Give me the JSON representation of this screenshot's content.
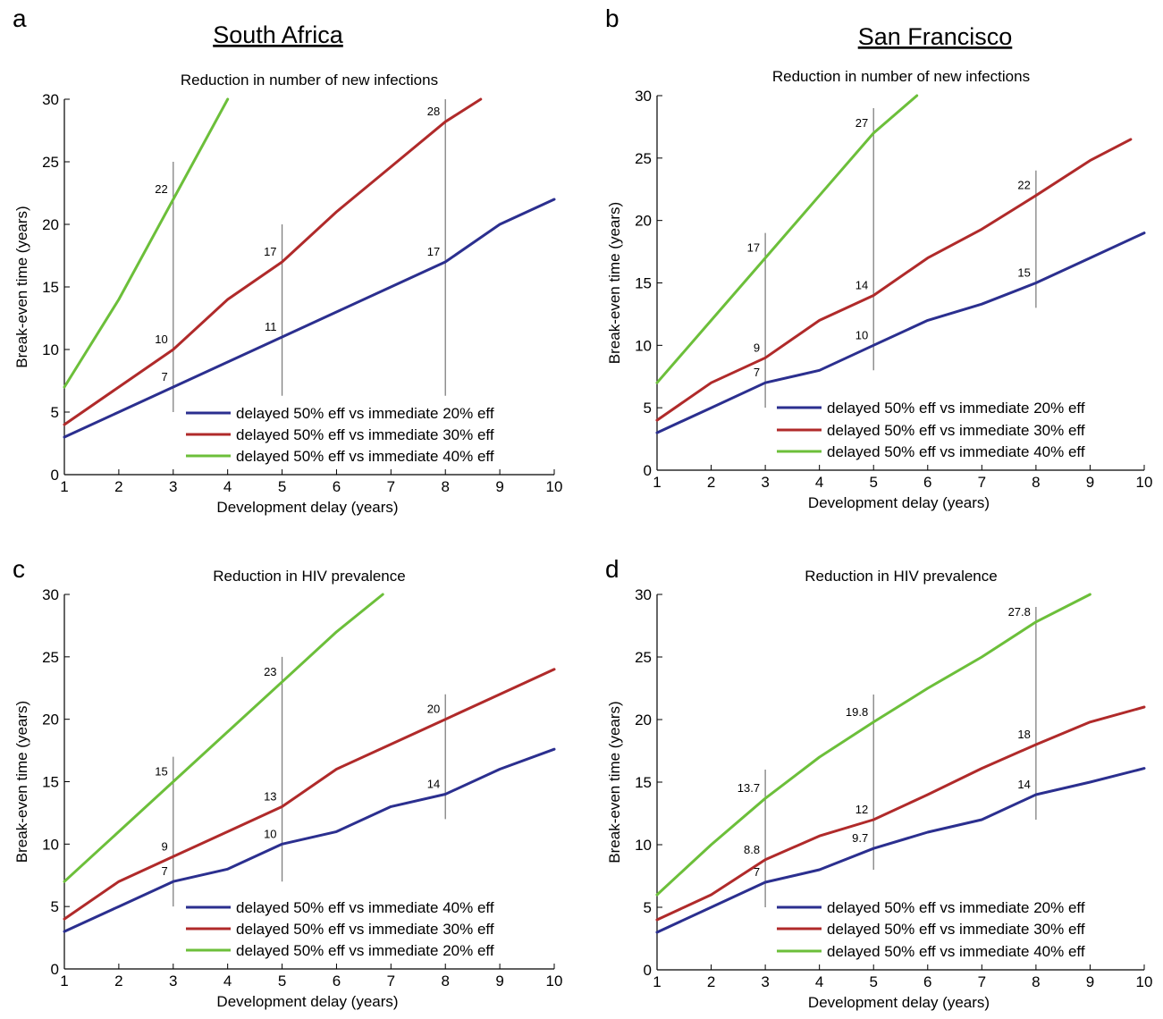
{
  "figure": {
    "region_titles": [
      {
        "text": "South Africa",
        "panel": 0
      },
      {
        "text": "San Francisco",
        "panel": 1
      }
    ]
  },
  "colors": {
    "blue": "#2b2f8f",
    "red": "#b02a2a",
    "green": "#6cbf3a",
    "marker_line": "#808080"
  },
  "chart_data": [
    {
      "type": "line",
      "panel_label": "a",
      "title": "Reduction in number of new infections",
      "xlabel": "Development delay (years)",
      "ylabel": "Break-even time (years)",
      "xlim": [
        1,
        10
      ],
      "ylim": [
        0,
        30
      ],
      "xticks": [
        1,
        2,
        3,
        4,
        5,
        6,
        7,
        8,
        9,
        10
      ],
      "yticks": [
        0,
        5,
        10,
        15,
        20,
        25,
        30
      ],
      "legend_position": "bottom-right",
      "series": [
        {
          "name": "delayed 50% eff vs immediate 20% eff",
          "color": "blue",
          "x": [
            1,
            2,
            3,
            4,
            5,
            6,
            7,
            8,
            9,
            10
          ],
          "y": [
            3,
            5,
            7,
            9,
            11,
            13,
            15,
            17,
            20,
            22
          ]
        },
        {
          "name": "delayed 50% eff vs immediate 30% eff",
          "color": "red",
          "x": [
            1,
            2,
            3,
            4,
            5,
            6,
            7,
            8,
            8.65
          ],
          "y": [
            4,
            7,
            10,
            14,
            17,
            21,
            24.6,
            28.2,
            30
          ]
        },
        {
          "name": "delayed 50% eff vs immediate 40% eff",
          "color": "green",
          "x": [
            1,
            2,
            3,
            4
          ],
          "y": [
            7,
            14,
            22,
            30
          ]
        }
      ],
      "markers": [
        {
          "x": 3,
          "y0": 5,
          "y1": 25
        },
        {
          "x": 5,
          "y0": 6.3,
          "y1": 20
        },
        {
          "x": 8,
          "y0": 6.3,
          "y1": 30
        }
      ],
      "annotations": [
        {
          "text": "22",
          "x": 3,
          "y": 22
        },
        {
          "text": "10",
          "x": 3,
          "y": 10
        },
        {
          "text": "7",
          "x": 3,
          "y": 7
        },
        {
          "text": "17",
          "x": 5,
          "y": 17
        },
        {
          "text": "11",
          "x": 5,
          "y": 11
        },
        {
          "text": "28",
          "x": 8,
          "y": 28.2
        },
        {
          "text": "17",
          "x": 8,
          "y": 17
        }
      ]
    },
    {
      "type": "line",
      "panel_label": "b",
      "title": "Reduction in number of new infections",
      "xlabel": "Development delay (years)",
      "ylabel": "Break-even time (years)",
      "xlim": [
        1,
        10
      ],
      "ylim": [
        0,
        30
      ],
      "xticks": [
        1,
        2,
        3,
        4,
        5,
        6,
        7,
        8,
        9,
        10
      ],
      "yticks": [
        0,
        5,
        10,
        15,
        20,
        25,
        30
      ],
      "legend_position": "bottom-right",
      "series": [
        {
          "name": "delayed 50% eff vs immediate 20% eff",
          "color": "blue",
          "x": [
            1,
            2,
            3,
            4,
            5,
            6,
            7,
            8,
            9,
            10
          ],
          "y": [
            3,
            5,
            7,
            8,
            10,
            12,
            13.3,
            15,
            17,
            19
          ]
        },
        {
          "name": "delayed 50% eff vs immediate 30% eff",
          "color": "red",
          "x": [
            1,
            2,
            3,
            4,
            5,
            6,
            7,
            8,
            9,
            9.75
          ],
          "y": [
            4,
            7,
            9,
            12,
            14,
            17,
            19.3,
            22,
            24.8,
            26.5
          ]
        },
        {
          "name": "delayed 50% eff vs immediate 40% eff",
          "color": "green",
          "x": [
            1,
            2,
            3,
            4,
            5,
            5.8
          ],
          "y": [
            7,
            12,
            17,
            22,
            27,
            30
          ]
        }
      ],
      "markers": [
        {
          "x": 3,
          "y0": 5,
          "y1": 19
        },
        {
          "x": 5,
          "y0": 8,
          "y1": 29
        },
        {
          "x": 8,
          "y0": 13,
          "y1": 24
        }
      ],
      "annotations": [
        {
          "text": "17",
          "x": 3,
          "y": 17
        },
        {
          "text": "9",
          "x": 3,
          "y": 9
        },
        {
          "text": "7",
          "x": 3,
          "y": 7
        },
        {
          "text": "27",
          "x": 5,
          "y": 27
        },
        {
          "text": "14",
          "x": 5,
          "y": 14
        },
        {
          "text": "10",
          "x": 5,
          "y": 10
        },
        {
          "text": "22",
          "x": 8,
          "y": 22
        },
        {
          "text": "15",
          "x": 8,
          "y": 15
        }
      ]
    },
    {
      "type": "line",
      "panel_label": "c",
      "title": "Reduction in HIV prevalence",
      "xlabel": "Development delay (years)",
      "ylabel": "Break-even time (years)",
      "xlim": [
        1,
        10
      ],
      "ylim": [
        0,
        30
      ],
      "xticks": [
        1,
        2,
        3,
        4,
        5,
        6,
        7,
        8,
        9,
        10
      ],
      "yticks": [
        0,
        5,
        10,
        15,
        20,
        25,
        30
      ],
      "legend_position": "bottom-right",
      "series": [
        {
          "name": "delayed 50% eff vs immediate 40% eff",
          "color": "blue",
          "x": [
            1,
            2,
            3,
            4,
            5,
            6,
            7,
            8,
            9,
            10
          ],
          "y": [
            3,
            5,
            7,
            8,
            10,
            11,
            13,
            14,
            16,
            17.6
          ]
        },
        {
          "name": "delayed 50% eff vs immediate 30% eff",
          "color": "red",
          "x": [
            1,
            2,
            3,
            4,
            5,
            6,
            7,
            8,
            9,
            10
          ],
          "y": [
            4,
            7,
            9,
            11,
            13,
            16,
            18,
            20,
            22,
            24
          ]
        },
        {
          "name": "delayed 50% eff vs immediate 20% eff",
          "color": "green",
          "x": [
            1,
            2,
            3,
            4,
            5,
            6,
            6.85
          ],
          "y": [
            7,
            11,
            15,
            19,
            23,
            27,
            30
          ]
        }
      ],
      "markers": [
        {
          "x": 3,
          "y0": 5,
          "y1": 17
        },
        {
          "x": 5,
          "y0": 7,
          "y1": 25
        },
        {
          "x": 8,
          "y0": 12,
          "y1": 22
        }
      ],
      "annotations": [
        {
          "text": "15",
          "x": 3,
          "y": 15
        },
        {
          "text": "9",
          "x": 3,
          "y": 9
        },
        {
          "text": "7",
          "x": 3,
          "y": 7
        },
        {
          "text": "23",
          "x": 5,
          "y": 23
        },
        {
          "text": "13",
          "x": 5,
          "y": 13
        },
        {
          "text": "10",
          "x": 5,
          "y": 10
        },
        {
          "text": "20",
          "x": 8,
          "y": 20
        },
        {
          "text": "14",
          "x": 8,
          "y": 14
        }
      ]
    },
    {
      "type": "line",
      "panel_label": "d",
      "title": "Reduction in HIV prevalence",
      "xlabel": "Development delay (years)",
      "ylabel": "Break-even time (years)",
      "xlim": [
        1,
        10
      ],
      "ylim": [
        0,
        30
      ],
      "xticks": [
        1,
        2,
        3,
        4,
        5,
        6,
        7,
        8,
        9,
        10
      ],
      "yticks": [
        0,
        5,
        10,
        15,
        20,
        25,
        30
      ],
      "legend_position": "bottom-right",
      "series": [
        {
          "name": "delayed 50% eff vs immediate 20% eff",
          "color": "blue",
          "x": [
            1,
            2,
            3,
            4,
            5,
            6,
            7,
            8,
            9,
            10
          ],
          "y": [
            3,
            5,
            7,
            8,
            9.7,
            11,
            12,
            14,
            15,
            16.1
          ]
        },
        {
          "name": "delayed 50% eff vs immediate 30% eff",
          "color": "red",
          "x": [
            1,
            2,
            3,
            4,
            5,
            6,
            7,
            8,
            9,
            10
          ],
          "y": [
            4,
            6,
            8.8,
            10.7,
            12,
            14,
            16.1,
            18,
            19.8,
            21
          ]
        },
        {
          "name": "delayed 50% eff vs immediate 40% eff",
          "color": "green",
          "x": [
            1,
            2,
            3,
            4,
            5,
            6,
            7,
            8,
            9
          ],
          "y": [
            6,
            10,
            13.7,
            17,
            19.8,
            22.5,
            25,
            27.8,
            30
          ]
        }
      ],
      "markers": [
        {
          "x": 3,
          "y0": 5,
          "y1": 16
        },
        {
          "x": 5,
          "y0": 8,
          "y1": 22
        },
        {
          "x": 8,
          "y0": 12,
          "y1": 29
        }
      ],
      "annotations": [
        {
          "text": "13.7",
          "x": 3,
          "y": 13.7
        },
        {
          "text": "8.8",
          "x": 3,
          "y": 8.8
        },
        {
          "text": "7",
          "x": 3,
          "y": 7
        },
        {
          "text": "19.8",
          "x": 5,
          "y": 19.8
        },
        {
          "text": "12",
          "x": 5,
          "y": 12
        },
        {
          "text": "9.7",
          "x": 5,
          "y": 9.7
        },
        {
          "text": "27.8",
          "x": 8,
          "y": 27.8
        },
        {
          "text": "18",
          "x": 8,
          "y": 18
        },
        {
          "text": "14",
          "x": 8,
          "y": 14
        }
      ]
    }
  ]
}
